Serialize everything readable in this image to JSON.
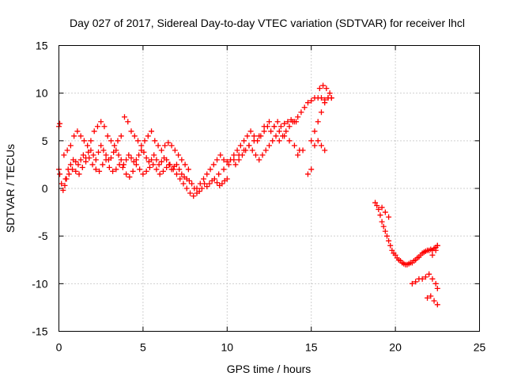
{
  "chart_data": {
    "type": "scatter",
    "title": "Day 027 of 2017, Sidereal Day-to-day VTEC variation (SDTVAR) for receiver lhcl",
    "xlabel": "GPS time / hours",
    "ylabel": "SDTVAR / TECUs",
    "xlim": [
      0,
      25
    ],
    "ylim": [
      -15,
      15
    ],
    "xticks": [
      "0",
      "5",
      "10",
      "15",
      "20",
      "25"
    ],
    "yticks": [
      "-15",
      "-10",
      "-5",
      "0",
      "5",
      "10",
      "15"
    ],
    "grid": true,
    "marker": "plus",
    "color": "#ff0000",
    "series": [
      {
        "x": [
          0.0,
          0.05,
          0.15,
          0.25,
          0.35,
          0.45,
          0.55,
          0.7,
          0.85,
          1.0,
          1.15,
          1.3,
          1.45,
          1.6,
          1.75,
          1.9,
          2.05,
          2.2,
          2.35,
          2.5,
          2.65,
          2.8,
          2.95,
          3.1,
          3.25,
          3.4,
          3.55,
          3.7,
          3.85,
          4.0,
          4.15,
          4.3,
          4.45,
          4.6,
          4.75,
          4.9,
          5.05,
          5.2,
          5.35,
          5.5,
          5.65,
          5.8,
          5.95,
          6.1,
          6.25,
          6.4,
          6.55,
          6.7,
          6.85,
          7.0,
          7.15,
          7.3,
          7.45,
          7.6,
          7.75,
          7.9,
          8.05,
          8.2,
          8.35,
          8.5,
          8.65,
          8.8,
          8.95,
          9.1,
          9.25,
          9.4,
          9.55,
          9.7,
          9.85,
          10.0
        ],
        "y": [
          2.0,
          1.5,
          0.5,
          -0.2,
          0.3,
          1.0,
          2.0,
          2.5,
          3.0,
          2.8,
          2.5,
          3.0,
          3.5,
          3.2,
          3.8,
          4.0,
          3.5,
          3.0,
          3.8,
          4.5,
          4.0,
          3.5,
          3.0,
          3.2,
          3.8,
          4.0,
          3.5,
          3.0,
          2.5,
          3.0,
          3.5,
          3.2,
          2.8,
          3.0,
          3.5,
          4.0,
          3.8,
          3.2,
          2.8,
          3.0,
          3.5,
          3.0,
          2.5,
          2.8,
          3.2,
          3.0,
          2.5,
          2.0,
          2.3,
          2.5,
          2.0,
          1.5,
          1.2,
          1.0,
          0.8,
          0.5,
          0.0,
          -0.5,
          -0.3,
          0.0,
          0.5,
          0.2,
          0.5,
          0.8,
          1.0,
          0.6,
          0.3,
          0.5,
          0.8,
          1.0
        ]
      },
      {
        "x": [
          0.0,
          0.05,
          0.3,
          0.5,
          0.7,
          0.9,
          1.1,
          1.3,
          1.5,
          1.7,
          1.9,
          2.1,
          2.3,
          2.5,
          2.7,
          2.9,
          3.1,
          3.3,
          3.5,
          3.7,
          3.9,
          4.1,
          4.3,
          4.5,
          4.7,
          4.9,
          5.1,
          5.3,
          5.5,
          5.7,
          5.9,
          6.1,
          6.3,
          6.5,
          6.7,
          6.9,
          7.1,
          7.3,
          7.5,
          7.7
        ],
        "y": [
          6.5,
          6.8,
          3.5,
          4.0,
          4.5,
          5.5,
          6.0,
          5.5,
          5.0,
          4.5,
          5.0,
          6.0,
          6.5,
          7.0,
          6.5,
          5.5,
          5.0,
          4.5,
          5.0,
          5.5,
          7.5,
          7.0,
          6.0,
          5.5,
          5.0,
          4.5,
          5.0,
          5.5,
          6.0,
          5.0,
          4.5,
          4.0,
          4.5,
          4.8,
          4.5,
          4.0,
          3.5,
          3.0,
          2.5,
          2.0
        ]
      },
      {
        "x": [
          0.4,
          0.6,
          0.8,
          1.0,
          1.2,
          1.4,
          1.6,
          1.8,
          2.0,
          2.2,
          2.4,
          2.6,
          2.8,
          3.0,
          3.2,
          3.4,
          3.6,
          3.8,
          4.0,
          4.2,
          4.4,
          4.6,
          4.8,
          5.0,
          5.2,
          5.4,
          5.6,
          5.8,
          6.0,
          6.2,
          6.4,
          6.6,
          6.8,
          7.0,
          7.2,
          7.4,
          7.6,
          7.8,
          8.0
        ],
        "y": [
          1.0,
          1.5,
          2.0,
          1.8,
          1.5,
          2.2,
          2.8,
          3.2,
          2.5,
          2.0,
          1.8,
          2.5,
          3.0,
          2.2,
          1.8,
          2.0,
          2.5,
          2.2,
          1.5,
          1.2,
          1.8,
          2.5,
          2.0,
          1.5,
          1.8,
          2.2,
          2.5,
          2.0,
          1.5,
          1.8,
          2.2,
          2.5,
          2.0,
          1.5,
          1.0,
          0.5,
          0.0,
          -0.5,
          -0.8
        ]
      },
      {
        "x": [
          8.2,
          8.4,
          8.6,
          8.8,
          9.0,
          9.2,
          9.4,
          9.6,
          9.8,
          10.0,
          10.2,
          10.4,
          10.6,
          10.8,
          11.0,
          11.2,
          11.4,
          11.6,
          11.8,
          12.0,
          12.2,
          12.4,
          12.6,
          12.8,
          13.0,
          13.2,
          13.4,
          13.6,
          13.8,
          14.0,
          14.2,
          14.4,
          14.6,
          14.8,
          15.0,
          15.2,
          15.4,
          15.6,
          15.8,
          16.0,
          16.2
        ],
        "y": [
          0.0,
          0.5,
          1.0,
          1.5,
          2.0,
          2.5,
          3.0,
          3.5,
          3.0,
          2.8,
          3.0,
          3.5,
          4.0,
          4.5,
          5.0,
          5.5,
          6.0,
          5.5,
          5.0,
          5.5,
          6.0,
          6.5,
          6.0,
          6.5,
          7.0,
          6.5,
          6.8,
          7.0,
          7.2,
          7.0,
          7.5,
          8.0,
          8.5,
          9.0,
          9.2,
          9.5,
          9.5,
          9.5,
          9.3,
          9.5,
          9.5
        ]
      },
      {
        "x": [
          9.5,
          9.8,
          10.1,
          10.4,
          10.7,
          11.0,
          11.3,
          11.6,
          11.9,
          12.2,
          12.5,
          12.8,
          13.1,
          13.4,
          13.7,
          14.0,
          14.3
        ],
        "y": [
          1.5,
          2.0,
          2.5,
          3.0,
          3.5,
          4.0,
          4.5,
          5.0,
          5.5,
          6.5,
          7.0,
          6.5,
          6.0,
          5.5,
          5.0,
          4.5,
          4.0
        ]
      },
      {
        "x": [
          10.5,
          10.7,
          10.9,
          11.1,
          11.3,
          11.5,
          11.7,
          11.9,
          12.1,
          12.3,
          12.5,
          12.7,
          12.9,
          13.1,
          13.3,
          13.5,
          13.7,
          13.9,
          14.1
        ],
        "y": [
          2.5,
          3.0,
          3.5,
          4.0,
          4.5,
          4.0,
          3.5,
          3.0,
          3.5,
          4.0,
          4.5,
          5.0,
          5.5,
          5.0,
          5.5,
          6.0,
          6.5,
          7.0,
          7.0
        ]
      },
      {
        "x": [
          15.0,
          15.2,
          15.4,
          15.6,
          15.8,
          16.0,
          16.2
        ],
        "y": [
          5.0,
          6.0,
          7.0,
          8.0,
          9.0,
          9.5,
          9.5
        ]
      },
      {
        "x": [
          15.2,
          15.4,
          15.6,
          15.8
        ],
        "y": [
          4.5,
          5.0,
          4.5,
          4.0
        ]
      },
      {
        "x": [
          15.5,
          15.7,
          15.9,
          16.1
        ],
        "y": [
          10.5,
          10.8,
          10.5,
          10.0
        ]
      },
      {
        "x": [
          14.8,
          15.0
        ],
        "y": [
          1.5,
          2.0
        ]
      },
      {
        "x": [
          14.2,
          14.5
        ],
        "y": [
          3.5,
          4.0
        ]
      },
      {
        "x": [
          18.8,
          18.9,
          19.0,
          19.1,
          19.2,
          19.3,
          19.4,
          19.5,
          19.6,
          19.7,
          19.8,
          19.9,
          20.0,
          20.1,
          20.2,
          20.3,
          20.4,
          20.5,
          20.6,
          20.7,
          20.8,
          20.9,
          21.0,
          21.1,
          21.2,
          21.3,
          21.4,
          21.5,
          21.6,
          21.7,
          21.8,
          21.9,
          22.0,
          22.1,
          22.2,
          22.3,
          22.4,
          22.5
        ],
        "y": [
          -1.5,
          -1.8,
          -2.2,
          -2.8,
          -3.5,
          -4.0,
          -4.5,
          -5.0,
          -5.5,
          -6.0,
          -6.5,
          -6.8,
          -7.0,
          -7.3,
          -7.5,
          -7.6,
          -7.8,
          -7.9,
          -8.0,
          -8.0,
          -7.9,
          -7.8,
          -7.8,
          -7.6,
          -7.5,
          -7.3,
          -7.2,
          -7.0,
          -6.8,
          -6.7,
          -6.6,
          -6.5,
          -6.5,
          -6.4,
          -6.5,
          -6.3,
          -6.2,
          -6.0
        ]
      },
      {
        "x": [
          19.2,
          19.4,
          19.6
        ],
        "y": [
          -2.0,
          -2.5,
          -3.0
        ]
      },
      {
        "x": [
          21.0,
          21.2,
          21.4,
          21.6,
          21.8,
          22.0,
          22.2,
          22.4,
          22.5
        ],
        "y": [
          -10.0,
          -9.8,
          -9.5,
          -9.5,
          -9.3,
          -9.0,
          -9.5,
          -10.0,
          -10.5
        ]
      },
      {
        "x": [
          21.9,
          22.1,
          22.3,
          22.5
        ],
        "y": [
          -11.5,
          -11.3,
          -11.8,
          -12.2
        ]
      },
      {
        "x": [
          22.2,
          22.4,
          22.5
        ],
        "y": [
          -7.0,
          -6.5,
          -6.0
        ]
      }
    ]
  }
}
